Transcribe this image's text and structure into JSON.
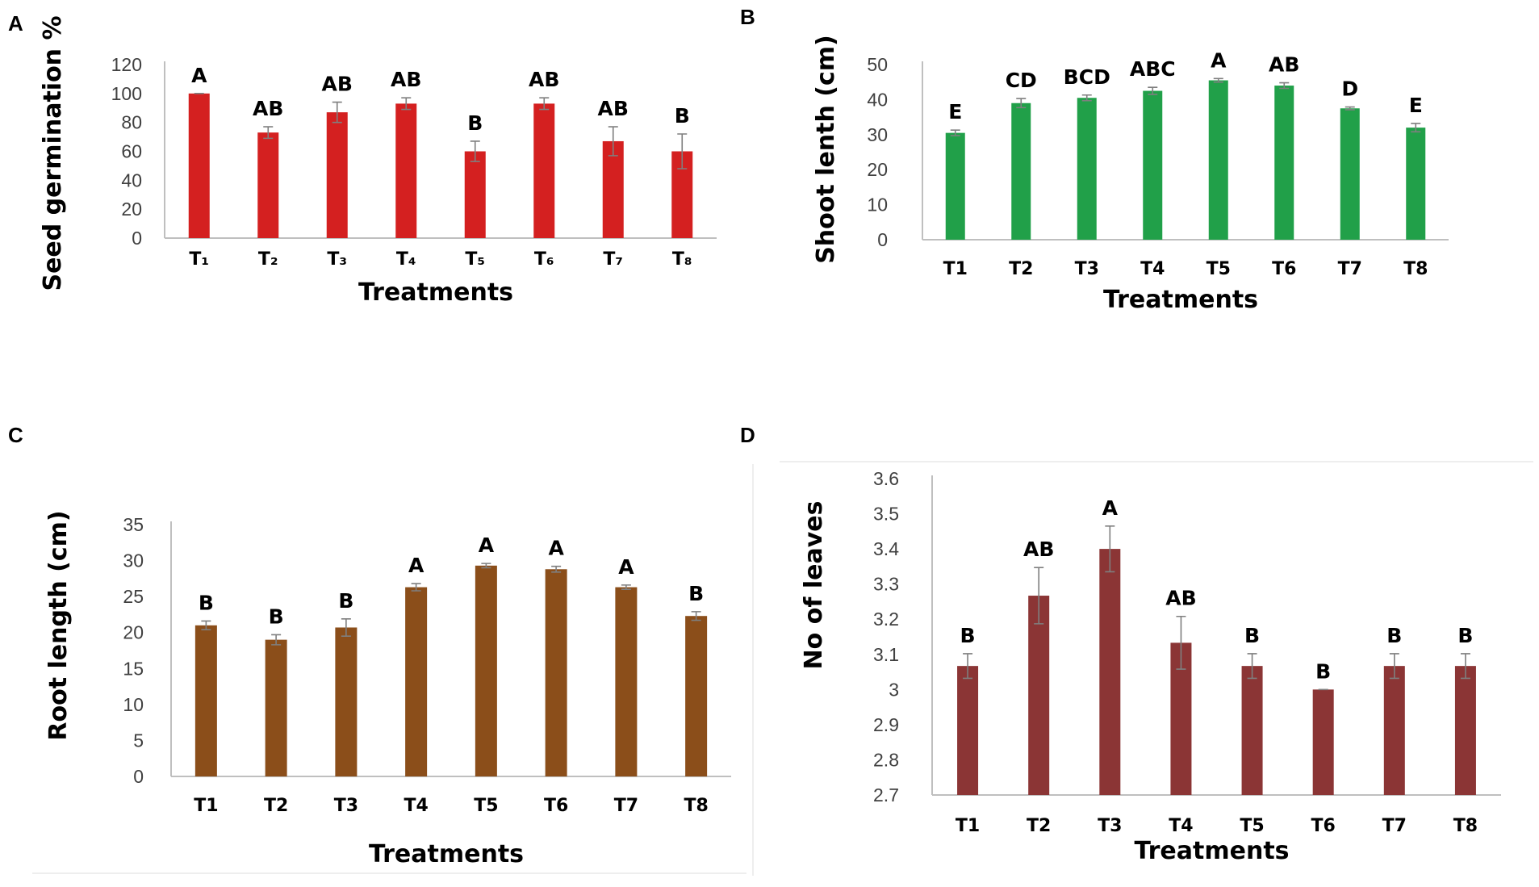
{
  "chart_data": [
    {
      "panel": "A",
      "type": "bar",
      "title": "",
      "xlabel": "Treatments",
      "ylabel": "Seed germination %",
      "categories": [
        "T₁",
        "T₂",
        "T₃",
        "T₄",
        "T₅",
        "T₆",
        "T₇",
        "T₈"
      ],
      "values": [
        100,
        73,
        87,
        93,
        60,
        93,
        67,
        60
      ],
      "errors": [
        0,
        4,
        7,
        4,
        7,
        4,
        10,
        12
      ],
      "significance": [
        "A",
        "AB",
        "AB",
        "AB",
        "B",
        "AB",
        "AB",
        "B"
      ],
      "ylim": [
        0,
        120
      ],
      "yticks": [
        "0",
        "20",
        "40",
        "60",
        "80",
        "100",
        "120"
      ],
      "color": "#d42020"
    },
    {
      "panel": "B",
      "type": "bar",
      "title": "",
      "xlabel": "Treatments",
      "ylabel": "Shoot lenth (cm)",
      "categories": [
        "T1",
        "T2",
        "T3",
        "T4",
        "T5",
        "T6",
        "T7",
        "T8"
      ],
      "values": [
        30.5,
        39,
        40.5,
        42.5,
        45.5,
        44,
        37.5,
        32
      ],
      "errors": [
        0.8,
        1.3,
        0.8,
        1,
        0.5,
        0.8,
        0.4,
        1.2
      ],
      "significance": [
        "E",
        "CD",
        "BCD",
        "ABC",
        "A",
        "AB",
        "D",
        "E"
      ],
      "ylim": [
        0,
        50
      ],
      "yticks": [
        "0",
        "10",
        "20",
        "30",
        "40",
        "50"
      ],
      "color": "#21a049"
    },
    {
      "panel": "C",
      "type": "bar",
      "title": "",
      "xlabel": "Treatments",
      "ylabel": "Root length (cm)",
      "categories": [
        "T1",
        "T2",
        "T3",
        "T4",
        "T5",
        "T6",
        "T7",
        "T8"
      ],
      "values": [
        21,
        19,
        20.7,
        26.3,
        29.3,
        28.8,
        26.3,
        22.3
      ],
      "errors": [
        0.6,
        0.7,
        1.2,
        0.5,
        0.3,
        0.4,
        0.3,
        0.6
      ],
      "significance": [
        "B",
        "B",
        "B",
        "A",
        "A",
        "A",
        "A",
        "B"
      ],
      "ylim": [
        0,
        35
      ],
      "yticks": [
        "0",
        "5",
        "10",
        "15",
        "20",
        "25",
        "30",
        "35"
      ],
      "color": "#8b4e1a"
    },
    {
      "panel": "D",
      "type": "bar",
      "title": "",
      "xlabel": "Treatments",
      "ylabel": "No of leaves",
      "categories": [
        "T1",
        "T2",
        "T3",
        "T4",
        "T5",
        "T6",
        "T7",
        "T8"
      ],
      "values": [
        3.067,
        3.267,
        3.4,
        3.133,
        3.067,
        3.0,
        3.067,
        3.067
      ],
      "errors": [
        0.035,
        0.08,
        0.065,
        0.075,
        0.035,
        0,
        0.035,
        0.035
      ],
      "significance": [
        "B",
        "AB",
        "A",
        "AB",
        "B",
        "B",
        "B",
        "B"
      ],
      "ylim": [
        2.7,
        3.6
      ],
      "yticks": [
        "2.7",
        "2.8",
        "2.9",
        "3",
        "3.1",
        "3.2",
        "3.3",
        "3.4",
        "3.5",
        "3.6"
      ],
      "color": "#8b3535"
    }
  ]
}
